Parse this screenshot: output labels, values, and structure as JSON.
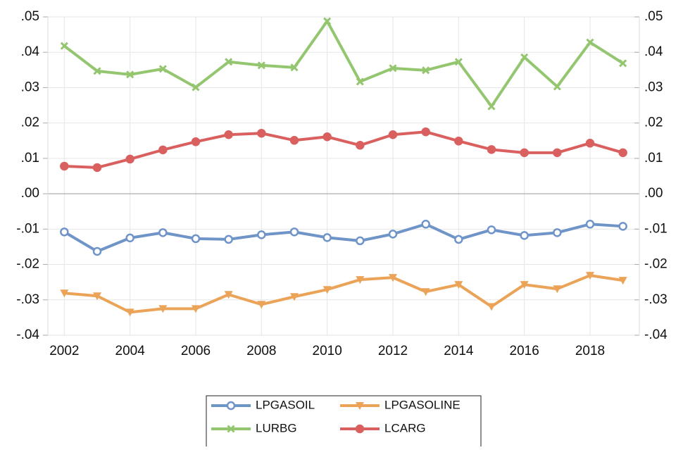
{
  "chart_data": {
    "type": "line",
    "x": [
      2002,
      2003,
      2004,
      2005,
      2006,
      2007,
      2008,
      2009,
      2010,
      2011,
      2012,
      2013,
      2014,
      2015,
      2016,
      2017,
      2018,
      2019
    ],
    "xlim": [
      2001.5,
      2019.5
    ],
    "xticks": [
      2002,
      2004,
      2006,
      2008,
      2010,
      2012,
      2014,
      2016,
      2018
    ],
    "ylim": [
      -0.04,
      0.05
    ],
    "yticks": [
      {
        "value": -0.04,
        "label": "-.04"
      },
      {
        "value": -0.03,
        "label": "-.03"
      },
      {
        "value": -0.02,
        "label": "-.02"
      },
      {
        "value": -0.01,
        "label": "-.01"
      },
      {
        "value": 0,
        "label": ".00"
      },
      {
        "value": 0.01,
        "label": ".01"
      },
      {
        "value": 0.02,
        "label": ".02"
      },
      {
        "value": 0.03,
        "label": ".03"
      },
      {
        "value": 0.04,
        "label": ".04"
      },
      {
        "value": 0.05,
        "label": ".05"
      }
    ],
    "grid": true,
    "series": [
      {
        "name": "LPGASOIL",
        "color": "#6f94c8",
        "marker": "circle-open",
        "values": [
          -0.0108,
          -0.0163,
          -0.0125,
          -0.011,
          -0.0127,
          -0.0129,
          -0.0116,
          -0.0108,
          -0.0124,
          -0.0133,
          -0.0114,
          -0.0086,
          -0.0129,
          -0.0102,
          -0.0118,
          -0.011,
          -0.0086,
          -0.0092
        ]
      },
      {
        "name": "LPGASOLINE",
        "color": "#eba358",
        "marker": "triangle-down",
        "values": [
          -0.0281,
          -0.0289,
          -0.0335,
          -0.0325,
          -0.0325,
          -0.0285,
          -0.0313,
          -0.0291,
          -0.0271,
          -0.0243,
          -0.0237,
          -0.0277,
          -0.0257,
          -0.0319,
          -0.0257,
          -0.0269,
          -0.0231,
          -0.0245
        ]
      },
      {
        "name": "LURBG",
        "color": "#93c66f",
        "marker": "x",
        "values": [
          0.0418,
          0.0347,
          0.0337,
          0.0353,
          0.0301,
          0.0373,
          0.0363,
          0.0357,
          0.0488,
          0.0317,
          0.0355,
          0.0349,
          0.0373,
          0.0247,
          0.0386,
          0.0303,
          0.0428,
          0.0369
        ]
      },
      {
        "name": "LCARG",
        "color": "#d9605f",
        "marker": "circle",
        "values": [
          0.0078,
          0.0074,
          0.0098,
          0.0124,
          0.0147,
          0.0167,
          0.0171,
          0.0151,
          0.0161,
          0.0137,
          0.0167,
          0.0175,
          0.0149,
          0.0125,
          0.0116,
          0.0116,
          0.0143,
          0.0116
        ]
      }
    ]
  }
}
